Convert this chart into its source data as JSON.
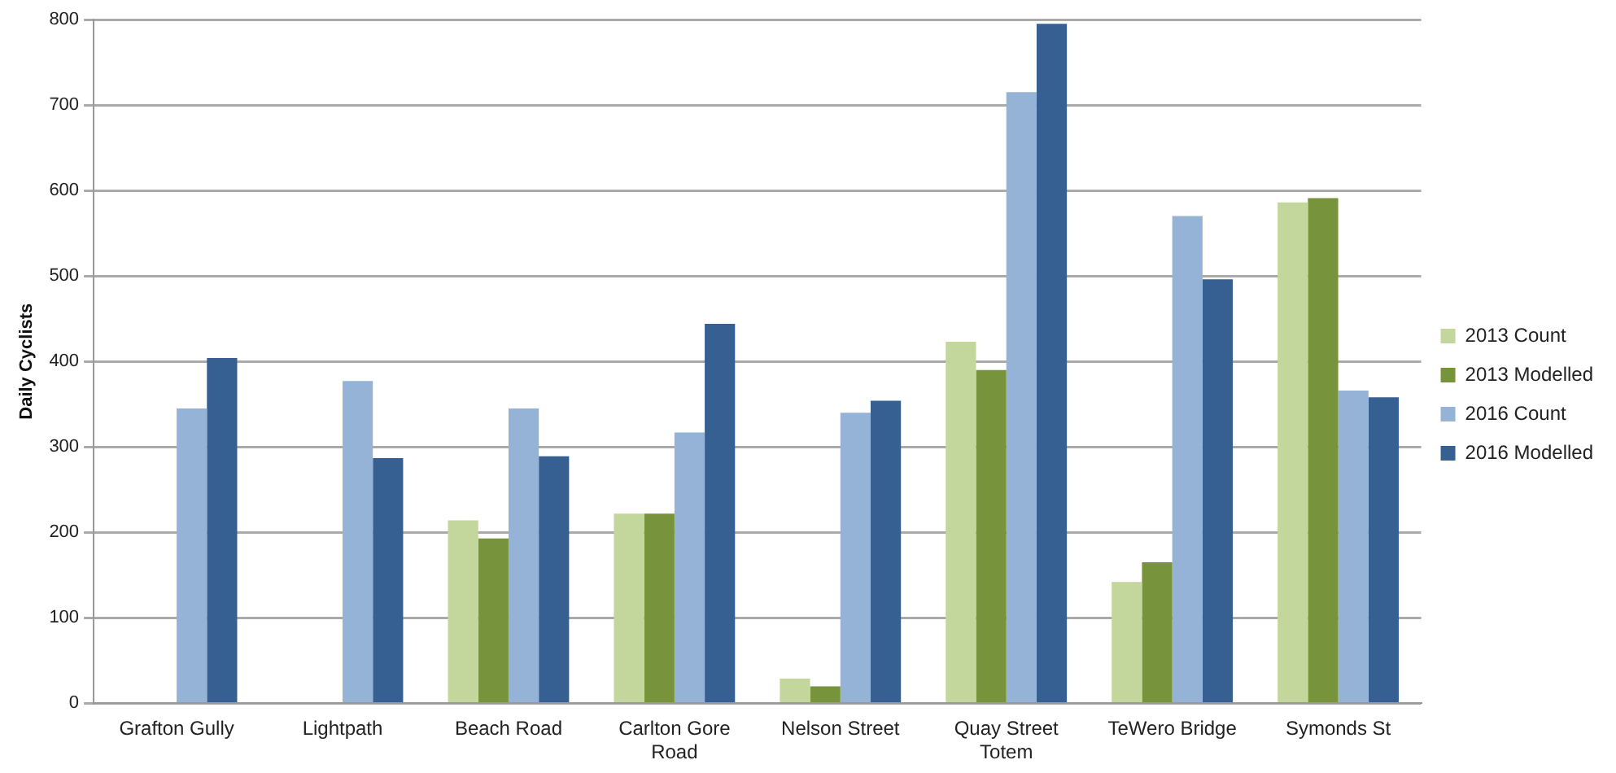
{
  "chart_data": {
    "type": "bar",
    "ylabel": "Daily Cyclists",
    "categories": [
      "Grafton Gully",
      "Lightpath",
      "Beach Road",
      "Carlton Gore Road",
      "Nelson Street",
      "Quay Street Totem",
      "TeWero Bridge",
      "Symonds St"
    ],
    "series": [
      {
        "name": "2013 Count",
        "color": "#c3d69b",
        "values": [
          null,
          null,
          214,
          222,
          29,
          423,
          142,
          586
        ]
      },
      {
        "name": "2013 Modelled",
        "color": "#77933c",
        "values": [
          null,
          null,
          193,
          222,
          20,
          390,
          165,
          591
        ]
      },
      {
        "name": "2016 Count",
        "color": "#95b3d7",
        "values": [
          345,
          377,
          345,
          317,
          340,
          715,
          570,
          366
        ]
      },
      {
        "name": "2016 Modelled",
        "color": "#366092",
        "values": [
          404,
          287,
          289,
          444,
          354,
          795,
          496,
          358
        ]
      }
    ],
    "ylim": [
      0,
      800
    ],
    "yticks": [
      0,
      100,
      200,
      300,
      400,
      500,
      600,
      700,
      800
    ],
    "grid": "y",
    "legend": "right"
  }
}
